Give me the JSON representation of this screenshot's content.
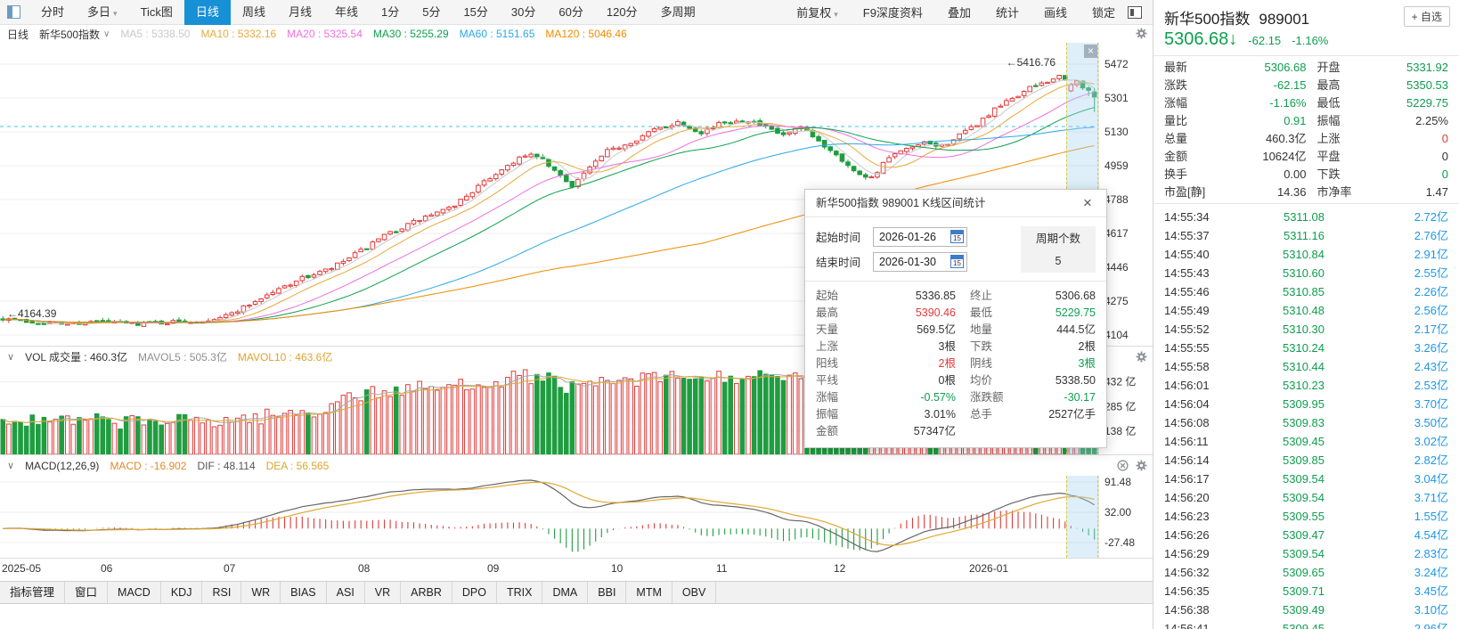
{
  "colors": {
    "up_red": "#e23a3a",
    "down_green": "#1f9d40",
    "price_green": "#0f9d4f",
    "amount_blue": "#1e97e4",
    "accent_blue": "#1890d5",
    "band_yellow": "#ddca3e"
  },
  "toolbar": {
    "periods": [
      {
        "label": "分时"
      },
      {
        "label": "多日",
        "caret": true
      },
      {
        "label": "Tick图"
      },
      {
        "label": "日线",
        "active": true
      },
      {
        "label": "周线"
      },
      {
        "label": "月线"
      },
      {
        "label": "年线"
      },
      {
        "label": "1分"
      },
      {
        "label": "5分"
      },
      {
        "label": "15分"
      },
      {
        "label": "30分"
      },
      {
        "label": "60分"
      },
      {
        "label": "120分"
      },
      {
        "label": "多周期"
      }
    ],
    "right_items": [
      {
        "label": "前复权",
        "caret": true
      },
      {
        "label": "F9深度资料"
      },
      {
        "label": "叠加"
      },
      {
        "label": "统计"
      },
      {
        "label": "画线"
      },
      {
        "label": "锁定"
      }
    ]
  },
  "ma_bar": {
    "period": "日线",
    "symbol": "新华500指数",
    "dropdown_icon": "∨",
    "items": [
      {
        "text": "MA5 : 5338.50",
        "color": "#c9c9c9"
      },
      {
        "text": "MA10 : 5332.16",
        "color": "#e7a93c"
      },
      {
        "text": "MA20 : 5325.54",
        "color": "#ee6fe0"
      },
      {
        "text": "MA30 : 5255.29",
        "color": "#0ca14e"
      },
      {
        "text": "MA60 : 5151.65",
        "color": "#2aa7e8"
      },
      {
        "text": "MA120 : 5046.46",
        "color": "#f08c00"
      }
    ]
  },
  "candle_pane": {
    "price_axis": [
      "5472",
      "5301",
      "5130",
      "4959",
      "4788",
      "4617",
      "4446",
      "4275",
      "4104"
    ],
    "high_marker": "←5416.76",
    "low_marker": "←4164.39"
  },
  "volume_pane": {
    "collapse_icon": "∨",
    "title": "VOL 成交量 : 460.3亿",
    "mavol5": "MAVOL5 : 505.3亿",
    "mavol10": "MAVOL10 : 463.6亿",
    "mavol5_color": "#a9a9a9",
    "mavol10_color": "#e0a830",
    "axis": [
      "432 亿",
      "285 亿",
      "138 亿"
    ],
    "axis_values": [
      432,
      285,
      138
    ],
    "axis_max": 520
  },
  "macd_pane": {
    "collapse_icon": "∨",
    "title": "MACD(12,26,9)",
    "macd": "MACD : -16.902",
    "dif": "DIF : 48.114",
    "dea": "DEA : 56.565",
    "dif_color": "#666666",
    "dea_color": "#e0a830",
    "axis": [
      "91.48",
      "32.00",
      "-27.48"
    ],
    "axis_values": [
      91.48,
      32.0,
      -27.48
    ]
  },
  "x_axis": [
    "2025-05",
    "06",
    "07",
    "08",
    "09",
    "10",
    "11",
    "12",
    "2026-01"
  ],
  "bottom_tabs": [
    "指标管理",
    "窗口",
    "MACD",
    "KDJ",
    "RSI",
    "WR",
    "BIAS",
    "ASI",
    "VR",
    "ARBR",
    "DPO",
    "TRIX",
    "DMA",
    "BBI",
    "MTM",
    "OBV"
  ],
  "dialog": {
    "title": "新华500指数 989001 K线区间统计",
    "close": "×",
    "start_label": "起始时间",
    "start_value": "2026-01-26",
    "end_label": "结束时间",
    "end_value": "2026-01-30",
    "calendar_day": "15",
    "period_label": "周期个数",
    "period_value": "5",
    "stats": [
      {
        "l1": "起始",
        "v1": "5336.85",
        "c1": "dark",
        "l2": "终止",
        "v2": "5306.68",
        "c2": "dark"
      },
      {
        "l1": "最高",
        "v1": "5390.46",
        "c1": "red",
        "l2": "最低",
        "v2": "5229.75",
        "c2": "green"
      },
      {
        "l1": "天量",
        "v1": "569.5亿",
        "c1": "dark",
        "l2": "地量",
        "v2": "444.5亿",
        "c2": "dark"
      },
      {
        "l1": "上涨",
        "v1": "3根",
        "c1": "dark",
        "l2": "下跌",
        "v2": "2根",
        "c2": "dark"
      },
      {
        "l1": "阳线",
        "v1": "2根",
        "c1": "red",
        "l2": "阴线",
        "v2": "3根",
        "c2": "green"
      },
      {
        "l1": "平线",
        "v1": "0根",
        "c1": "dark",
        "l2": "均价",
        "v2": "5338.50",
        "c2": "dark"
      },
      {
        "l1": "涨幅",
        "v1": "-0.57%",
        "c1": "green",
        "l2": "涨跌额",
        "v2": "-30.17",
        "c2": "green"
      },
      {
        "l1": "振幅",
        "v1": "3.01%",
        "c1": "dark",
        "l2": "总手",
        "v2": "2527亿手",
        "c2": "dark"
      },
      {
        "l1": "金额",
        "v1": "57347亿",
        "c1": "dark",
        "l2": "",
        "v2": "",
        "c2": "dark"
      }
    ]
  },
  "right_panel": {
    "name": "新华500指数",
    "code": "989001",
    "watch": "+ 自选",
    "price": "5306.68",
    "arrow": "↓",
    "change": "-62.15",
    "pct": "-1.16%",
    "quotes": [
      {
        "l1": "最新",
        "v1": "5306.68",
        "c1": "green",
        "l2": "开盘",
        "v2": "5331.92",
        "c2": "green"
      },
      {
        "l1": "涨跌",
        "v1": "-62.15",
        "c1": "green",
        "l2": "最高",
        "v2": "5350.53",
        "c2": "green"
      },
      {
        "l1": "涨幅",
        "v1": "-1.16%",
        "c1": "green",
        "l2": "最低",
        "v2": "5229.75",
        "c2": "green"
      },
      {
        "l1": "量比",
        "v1": "0.91",
        "c1": "green",
        "l2": "振幅",
        "v2": "2.25%",
        "c2": "dark"
      },
      {
        "l1": "总量",
        "v1": "460.3亿",
        "c1": "dark",
        "l2": "上涨",
        "v2": "0",
        "c2": "red"
      },
      {
        "l1": "金额",
        "v1": "10624亿",
        "c1": "dark",
        "l2": "平盘",
        "v2": "0",
        "c2": "dark"
      },
      {
        "l1": "换手",
        "v1": "0.00",
        "c1": "dark",
        "l2": "下跌",
        "v2": "0",
        "c2": "green"
      },
      {
        "l1": "市盈[静]",
        "v1": "14.36",
        "c1": "dark",
        "l2": "市净率",
        "v2": "1.47",
        "c2": "dark"
      }
    ],
    "ticks": [
      {
        "t": "14:55:34",
        "p": "5311.08",
        "a": "2.72亿"
      },
      {
        "t": "14:55:37",
        "p": "5311.16",
        "a": "2.76亿"
      },
      {
        "t": "14:55:40",
        "p": "5310.84",
        "a": "2.91亿"
      },
      {
        "t": "14:55:43",
        "p": "5310.60",
        "a": "2.55亿"
      },
      {
        "t": "14:55:46",
        "p": "5310.85",
        "a": "2.26亿"
      },
      {
        "t": "14:55:49",
        "p": "5310.48",
        "a": "2.56亿"
      },
      {
        "t": "14:55:52",
        "p": "5310.30",
        "a": "2.17亿"
      },
      {
        "t": "14:55:55",
        "p": "5310.24",
        "a": "3.26亿"
      },
      {
        "t": "14:55:58",
        "p": "5310.44",
        "a": "2.43亿"
      },
      {
        "t": "14:56:01",
        "p": "5310.23",
        "a": "2.53亿"
      },
      {
        "t": "14:56:04",
        "p": "5309.95",
        "a": "3.70亿"
      },
      {
        "t": "14:56:08",
        "p": "5309.83",
        "a": "3.50亿"
      },
      {
        "t": "14:56:11",
        "p": "5309.45",
        "a": "3.02亿"
      },
      {
        "t": "14:56:14",
        "p": "5309.85",
        "a": "2.82亿"
      },
      {
        "t": "14:56:17",
        "p": "5309.54",
        "a": "3.04亿"
      },
      {
        "t": "14:56:20",
        "p": "5309.54",
        "a": "3.71亿"
      },
      {
        "t": "14:56:23",
        "p": "5309.55",
        "a": "1.55亿"
      },
      {
        "t": "14:56:26",
        "p": "5309.47",
        "a": "4.54亿"
      },
      {
        "t": "14:56:29",
        "p": "5309.54",
        "a": "2.83亿"
      },
      {
        "t": "14:56:32",
        "p": "5309.65",
        "a": "3.24亿"
      },
      {
        "t": "14:56:35",
        "p": "5309.71",
        "a": "3.45亿"
      },
      {
        "t": "14:56:38",
        "p": "5309.49",
        "a": "3.10亿"
      },
      {
        "t": "14:56:41",
        "p": "5309.45",
        "a": "2.96亿"
      }
    ]
  }
}
